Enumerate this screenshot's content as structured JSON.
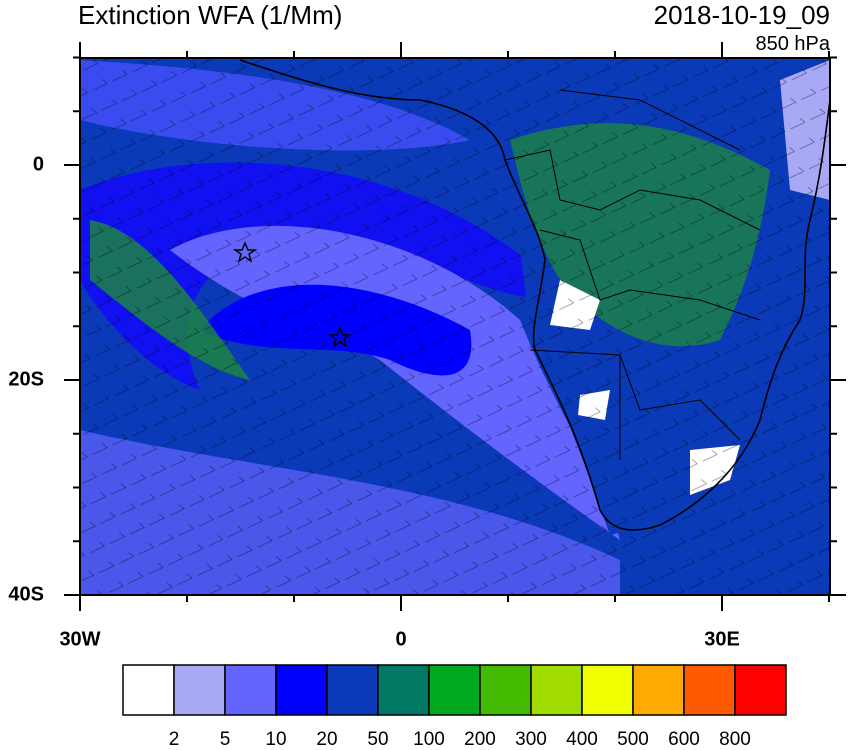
{
  "header": {
    "title": "Extinction WFA (1/Mm)",
    "date": "2018-10-19_09",
    "level": "850 hPa"
  },
  "map": {
    "lat_ticks": [
      {
        "value": 0,
        "label": "0"
      },
      {
        "value": -20,
        "label": "20S"
      },
      {
        "value": -40,
        "label": "40S"
      }
    ],
    "lon_ticks": [
      {
        "value": -30,
        "label": "30W"
      },
      {
        "value": 0,
        "label": "0"
      },
      {
        "value": 30,
        "label": "30E"
      }
    ]
  },
  "colorbar": {
    "colors": [
      "#ffffff",
      "#a8a8f5",
      "#6464ff",
      "#0000ff",
      "#0a3ab8",
      "#007a64",
      "#00a81e",
      "#44bb00",
      "#a0dc00",
      "#f0ff00",
      "#ffaa00",
      "#ff5a00",
      "#ff0000"
    ],
    "labels": [
      "2",
      "5",
      "10",
      "20",
      "50",
      "100",
      "200",
      "300",
      "400",
      "500",
      "600",
      "800"
    ]
  }
}
